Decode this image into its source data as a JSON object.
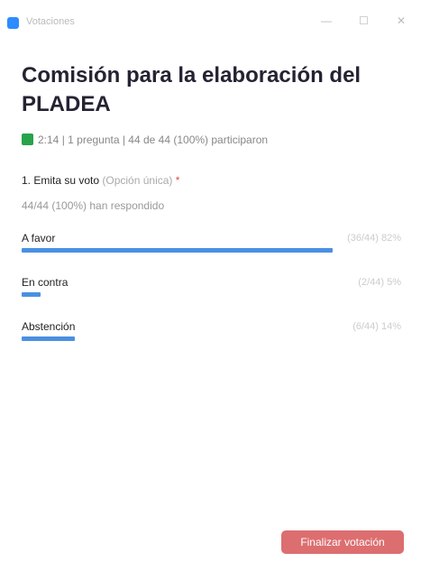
{
  "window": {
    "title": "Votaciones"
  },
  "poll": {
    "title": "Comisión para la elaboración del PLADEA",
    "meta": "2:14 | 1 pregunta | 44 de 44 (100%) participaron",
    "question": {
      "text": "1. Emita su voto",
      "kind": "(Opción única)",
      "required": "*",
      "responded": "44/44 (100%) han respondido",
      "options": [
        {
          "label": "A favor",
          "result": "(36/44) 82%",
          "percent": 82
        },
        {
          "label": "En contra",
          "result": "(2/44) 5%",
          "percent": 5
        },
        {
          "label": "Abstención",
          "result": "(6/44) 14%",
          "percent": 14
        }
      ]
    }
  },
  "button": {
    "label": "Finalizar votación"
  }
}
